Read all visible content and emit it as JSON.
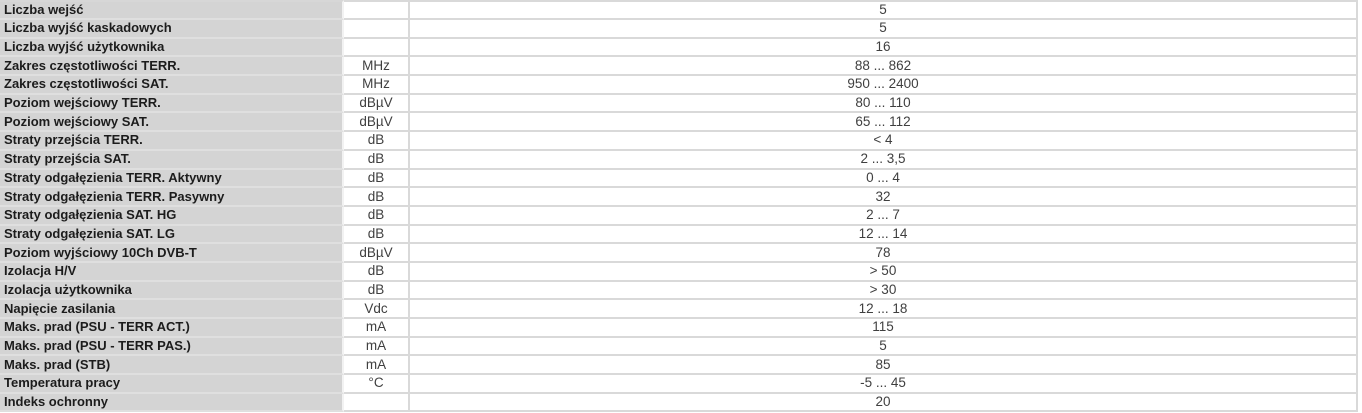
{
  "table": {
    "colors": {
      "label_bg": "#d4d4d4",
      "cell_bg": "#ffffff",
      "border": "#d9d9d9",
      "label_text": "#1c1c1c",
      "value_text": "#3f3f3f"
    },
    "rows": [
      {
        "label": "Liczba wejść",
        "unit": "",
        "value": "5"
      },
      {
        "label": "Liczba wyjść kaskadowych",
        "unit": "",
        "value": "5"
      },
      {
        "label": "Liczba wyjść użytkownika",
        "unit": "",
        "value": "16"
      },
      {
        "label": "Zakres częstotliwości TERR.",
        "unit": "MHz",
        "value": "88 ... 862"
      },
      {
        "label": "Zakres częstotliwości SAT.",
        "unit": "MHz",
        "value": "950 ... 2400"
      },
      {
        "label": "Poziom wejściowy TERR.",
        "unit": "dBµV",
        "value": "80 ... 110"
      },
      {
        "label": "Poziom wejściowy SAT.",
        "unit": "dBµV",
        "value": "65 ... 112"
      },
      {
        "label": "Straty przejścia TERR.",
        "unit": "dB",
        "value": "< 4"
      },
      {
        "label": "Straty przejścia SAT.",
        "unit": "dB",
        "value": "2 ... 3,5"
      },
      {
        "label": "Straty odgałęzienia TERR. Aktywny",
        "unit": "dB",
        "value": "0 ... 4"
      },
      {
        "label": "Straty odgałęzienia TERR. Pasywny",
        "unit": "dB",
        "value": "32"
      },
      {
        "label": "Straty odgałęzienia SAT. HG",
        "unit": "dB",
        "value": "2 ... 7"
      },
      {
        "label": "Straty odgałęzienia SAT. LG",
        "unit": "dB",
        "value": "12 ... 14"
      },
      {
        "label": "Poziom wyjściowy 10Ch DVB-T",
        "unit": "dBµV",
        "value": "78"
      },
      {
        "label": "Izolacja H/V",
        "unit": "dB",
        "value": "> 50"
      },
      {
        "label": "Izolacja użytkownika",
        "unit": "dB",
        "value": "> 30"
      },
      {
        "label": "Napięcie zasilania",
        "unit": "Vdc",
        "value": "12 ... 18"
      },
      {
        "label": "Maks. prad (PSU - TERR ACT.)",
        "unit": "mA",
        "value": "115"
      },
      {
        "label": "Maks. prad (PSU - TERR PAS.)",
        "unit": "mA",
        "value": "5"
      },
      {
        "label": "Maks. prad (STB)",
        "unit": "mA",
        "value": "85"
      },
      {
        "label": "Temperatura pracy",
        "unit": "°C",
        "value": "-5 ... 45"
      },
      {
        "label": "Indeks ochronny",
        "unit": "",
        "value": "20"
      }
    ]
  }
}
